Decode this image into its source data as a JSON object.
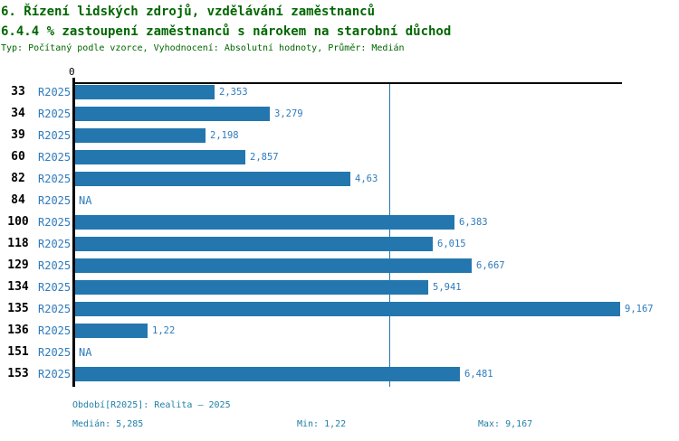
{
  "header": {
    "title_line1": "6. Řízení lidských zdrojů, vzdělávání zaměstnanců",
    "title_line2": "6.4.4 % zastoupení zaměstnanců s nárokem na starobní důchod",
    "meta": "Typ: Počítaný podle vzorce, Vyhodnocení: Absolutní hodnoty, Průměr: Medián"
  },
  "chart_data": {
    "type": "bar",
    "orientation": "horizontal",
    "axis": {
      "zero_label": "0",
      "xmin": 0,
      "xmax": 9.2,
      "grid": false,
      "legend": "none"
    },
    "series_label": "R2025",
    "na_label": "NA",
    "median_value": 5.285,
    "rows": [
      {
        "category": "33",
        "period": "R2025",
        "value": 2.353,
        "value_label": "2,353"
      },
      {
        "category": "34",
        "period": "R2025",
        "value": 3.279,
        "value_label": "3,279"
      },
      {
        "category": "39",
        "period": "R2025",
        "value": 2.198,
        "value_label": "2,198"
      },
      {
        "category": "60",
        "period": "R2025",
        "value": 2.857,
        "value_label": "2,857"
      },
      {
        "category": "82",
        "period": "R2025",
        "value": 4.63,
        "value_label": "4,63"
      },
      {
        "category": "84",
        "period": "R2025",
        "value": null,
        "value_label": "NA"
      },
      {
        "category": "100",
        "period": "R2025",
        "value": 6.383,
        "value_label": "6,383"
      },
      {
        "category": "118",
        "period": "R2025",
        "value": 6.015,
        "value_label": "6,015"
      },
      {
        "category": "129",
        "period": "R2025",
        "value": 6.667,
        "value_label": "6,667"
      },
      {
        "category": "134",
        "period": "R2025",
        "value": 5.941,
        "value_label": "5,941"
      },
      {
        "category": "135",
        "period": "R2025",
        "value": 9.167,
        "value_label": "9,167"
      },
      {
        "category": "136",
        "period": "R2025",
        "value": 1.22,
        "value_label": "1,22"
      },
      {
        "category": "151",
        "period": "R2025",
        "value": null,
        "value_label": "NA"
      },
      {
        "category": "153",
        "period": "R2025",
        "value": 6.481,
        "value_label": "6,481"
      }
    ],
    "colors": {
      "bar": "#2377ae",
      "median_line": "#2377ae",
      "row_label_blue": "#2e7bbd",
      "title_green": "#006600",
      "footer_teal": "#1f7fa6",
      "axis": "#000000"
    }
  },
  "footer": {
    "period_line": "Období[R2025]: Realita – 2025",
    "median_label": "Medián: 5,285",
    "min_label": "Min: 1,22",
    "max_label": "Max: 9,167"
  }
}
